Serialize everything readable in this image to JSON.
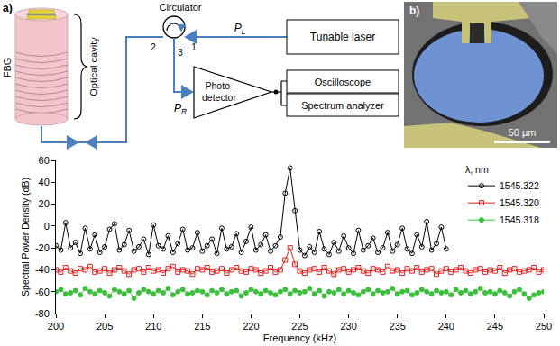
{
  "panel_a": {
    "label": "a)",
    "device": "FBG",
    "cavity": "Optical cavity",
    "circulator": "Circulator",
    "ports": [
      "1",
      "2",
      "3"
    ],
    "laser": "Tunable laser",
    "input_power": {
      "text": "P",
      "sub": "L"
    },
    "reflected_power": {
      "text": "P",
      "sub": "R"
    },
    "detector": "Photo-detector",
    "instruments": [
      "Oscilloscope",
      "Spectrum analyzer"
    ]
  },
  "panel_b": {
    "label": "b)",
    "scale_bar": "50 μm"
  },
  "chart_data": {
    "type": "line",
    "x_label": "Frequency (kHz)",
    "y_label": "Spectral Power Density (dB)",
    "xlim": [
      200,
      250
    ],
    "xticks": [
      200,
      205,
      210,
      215,
      220,
      225,
      230,
      235,
      240,
      245,
      250
    ],
    "ylim": [
      -80,
      60
    ],
    "yticks": [
      -80,
      -60,
      -40,
      -20,
      0,
      20,
      40,
      60
    ],
    "grid": false,
    "legend": "upper right",
    "legend_title": "λ, nm",
    "series": [
      {
        "name": "1545.322",
        "color": "#000000",
        "marker": "circle-open",
        "line_style": "solid",
        "x": [
          200,
          200.5,
          201,
          201.5,
          202,
          202.5,
          203,
          203.5,
          204,
          204.5,
          205,
          205.5,
          206,
          206.5,
          207,
          207.5,
          208,
          208.5,
          209,
          209.5,
          210,
          210.5,
          211,
          211.5,
          212,
          212.5,
          213,
          213.5,
          214,
          214.5,
          215,
          215.5,
          216,
          216.5,
          217,
          217.5,
          218,
          218.5,
          219,
          219.5,
          220,
          220.5,
          221,
          221.5,
          222,
          222.5,
          223,
          223.5,
          224,
          224.5,
          225,
          225.5,
          226,
          226.5,
          227,
          227.5,
          228,
          228.5,
          229,
          229.5,
          230,
          230.5,
          231,
          231.5,
          232,
          232.5,
          233,
          233.5,
          234,
          234.5,
          235,
          235.5,
          236,
          236.5,
          237,
          237.5,
          238,
          238.5,
          239,
          239.5,
          240
        ],
        "values": [
          -18,
          -22,
          3,
          -20,
          -15,
          -25,
          -2,
          -21,
          -8,
          -24,
          -19,
          -3,
          2,
          -22,
          -17,
          -4,
          -23,
          -19,
          -12,
          -26,
          1,
          -18,
          -21,
          -9,
          -24,
          -16,
          -3,
          -22,
          -20,
          -6,
          -23,
          -18,
          -12,
          -25,
          -2,
          -21,
          -19,
          -7,
          -24,
          -14,
          -1,
          -22,
          -17,
          -8,
          -23,
          -18,
          -10,
          30,
          53,
          14,
          -22,
          -27,
          -19,
          -24,
          -5,
          -21,
          -26,
          -15,
          -23,
          -9,
          -20,
          -25,
          -4,
          -22,
          -18,
          -11,
          -24,
          -20,
          -6,
          -23,
          -17,
          -2,
          -21,
          -25,
          -8,
          -19,
          4,
          -22,
          -16,
          -1,
          -21
        ]
      },
      {
        "name": "1545.320",
        "color": "#e0201c",
        "marker": "square-open",
        "line_style": "solid",
        "x": [
          200,
          200.5,
          201,
          201.5,
          202,
          202.5,
          203,
          203.5,
          204,
          204.5,
          205,
          205.5,
          206,
          206.5,
          207,
          207.5,
          208,
          208.5,
          209,
          209.5,
          210,
          210.5,
          211,
          211.5,
          212,
          212.5,
          213,
          213.5,
          214,
          214.5,
          215,
          215.5,
          216,
          216.5,
          217,
          217.5,
          218,
          218.5,
          219,
          219.5,
          220,
          220.5,
          221,
          221.5,
          222,
          222.5,
          223,
          223.5,
          224,
          224.5,
          225,
          225.5,
          226,
          226.5,
          227,
          227.5,
          228,
          228.5,
          229,
          229.5,
          230,
          230.5,
          231,
          231.5,
          232,
          232.5,
          233,
          233.5,
          234,
          234.5,
          235,
          235.5,
          236,
          236.5,
          237,
          237.5,
          238,
          238.5,
          239,
          239.5,
          240,
          240.5,
          241,
          241.5,
          242,
          242.5,
          243,
          243.5,
          244,
          244.5,
          245,
          245.5,
          246,
          246.5,
          247,
          247.5,
          248,
          248.5,
          249,
          249.5,
          250
        ],
        "values": [
          -40,
          -42,
          -38,
          -41,
          -43,
          -39,
          -40,
          -37,
          -42,
          -41,
          -39,
          -43,
          -40,
          -38,
          -41,
          -44,
          -40,
          -39,
          -42,
          -38,
          -41,
          -40,
          -43,
          -39,
          -37,
          -42,
          -40,
          -41,
          -44,
          -39,
          -40,
          -38,
          -42,
          -41,
          -39,
          -43,
          -40,
          -38,
          -41,
          -42,
          -39,
          -40,
          -43,
          -41,
          -38,
          -42,
          -40,
          -31,
          -20,
          -35,
          -41,
          -43,
          -40,
          -39,
          -42,
          -38,
          -41,
          -44,
          -40,
          -39,
          -42,
          -40,
          -38,
          -41,
          -43,
          -39,
          -40,
          -42,
          -37,
          -41,
          -40,
          -43,
          -39,
          -41,
          -38,
          -42,
          -40,
          -39,
          -44,
          -41,
          -39,
          -42,
          -40,
          -38,
          -41,
          -43,
          -40,
          -39,
          -42,
          -40,
          -41,
          -38,
          -43,
          -40,
          -39,
          -42,
          -41,
          -40,
          -38,
          -42,
          -40
        ]
      },
      {
        "name": "1545.318",
        "color": "#3cbf3c",
        "marker": "circle",
        "line_style": "solid",
        "x": [
          200,
          200.5,
          201,
          201.5,
          202,
          202.5,
          203,
          203.5,
          204,
          204.5,
          205,
          205.5,
          206,
          206.5,
          207,
          207.5,
          208,
          208.5,
          209,
          209.5,
          210,
          210.5,
          211,
          211.5,
          212,
          212.5,
          213,
          213.5,
          214,
          214.5,
          215,
          215.5,
          216,
          216.5,
          217,
          217.5,
          218,
          218.5,
          219,
          219.5,
          220,
          220.5,
          221,
          221.5,
          222,
          222.5,
          223,
          223.5,
          224,
          224.5,
          225,
          225.5,
          226,
          226.5,
          227,
          227.5,
          228,
          228.5,
          229,
          229.5,
          230,
          230.5,
          231,
          231.5,
          232,
          232.5,
          233,
          233.5,
          234,
          234.5,
          235,
          235.5,
          236,
          236.5,
          237,
          237.5,
          238,
          238.5,
          239,
          239.5,
          240,
          240.5,
          241,
          241.5,
          242,
          242.5,
          243,
          243.5,
          244,
          244.5,
          245,
          245.5,
          246,
          246.5,
          247,
          247.5,
          248,
          248.5,
          249,
          249.5,
          250
        ],
        "values": [
          -60,
          -58,
          -62,
          -61,
          -59,
          -63,
          -57,
          -60,
          -62,
          -59,
          -61,
          -64,
          -58,
          -60,
          -62,
          -59,
          -66,
          -61,
          -58,
          -60,
          -62,
          -59,
          -61,
          -57,
          -63,
          -60,
          -58,
          -62,
          -61,
          -59,
          -60,
          -63,
          -59,
          -61,
          -58,
          -62,
          -60,
          -59,
          -64,
          -61,
          -58,
          -60,
          -62,
          -59,
          -61,
          -63,
          -60,
          -58,
          -62,
          -59,
          -61,
          -60,
          -57,
          -62,
          -59,
          -64,
          -60,
          -61,
          -58,
          -62,
          -59,
          -61,
          -63,
          -60,
          -58,
          -62,
          -59,
          -61,
          -60,
          -57,
          -62,
          -60,
          -59,
          -63,
          -61,
          -58,
          -60,
          -62,
          -59,
          -61,
          -60,
          -63,
          -58,
          -61,
          -59,
          -62,
          -60,
          -57,
          -61,
          -60,
          -62,
          -59,
          -61,
          -64,
          -60,
          -58,
          -62,
          -66,
          -63,
          -61,
          -60
        ]
      }
    ]
  }
}
